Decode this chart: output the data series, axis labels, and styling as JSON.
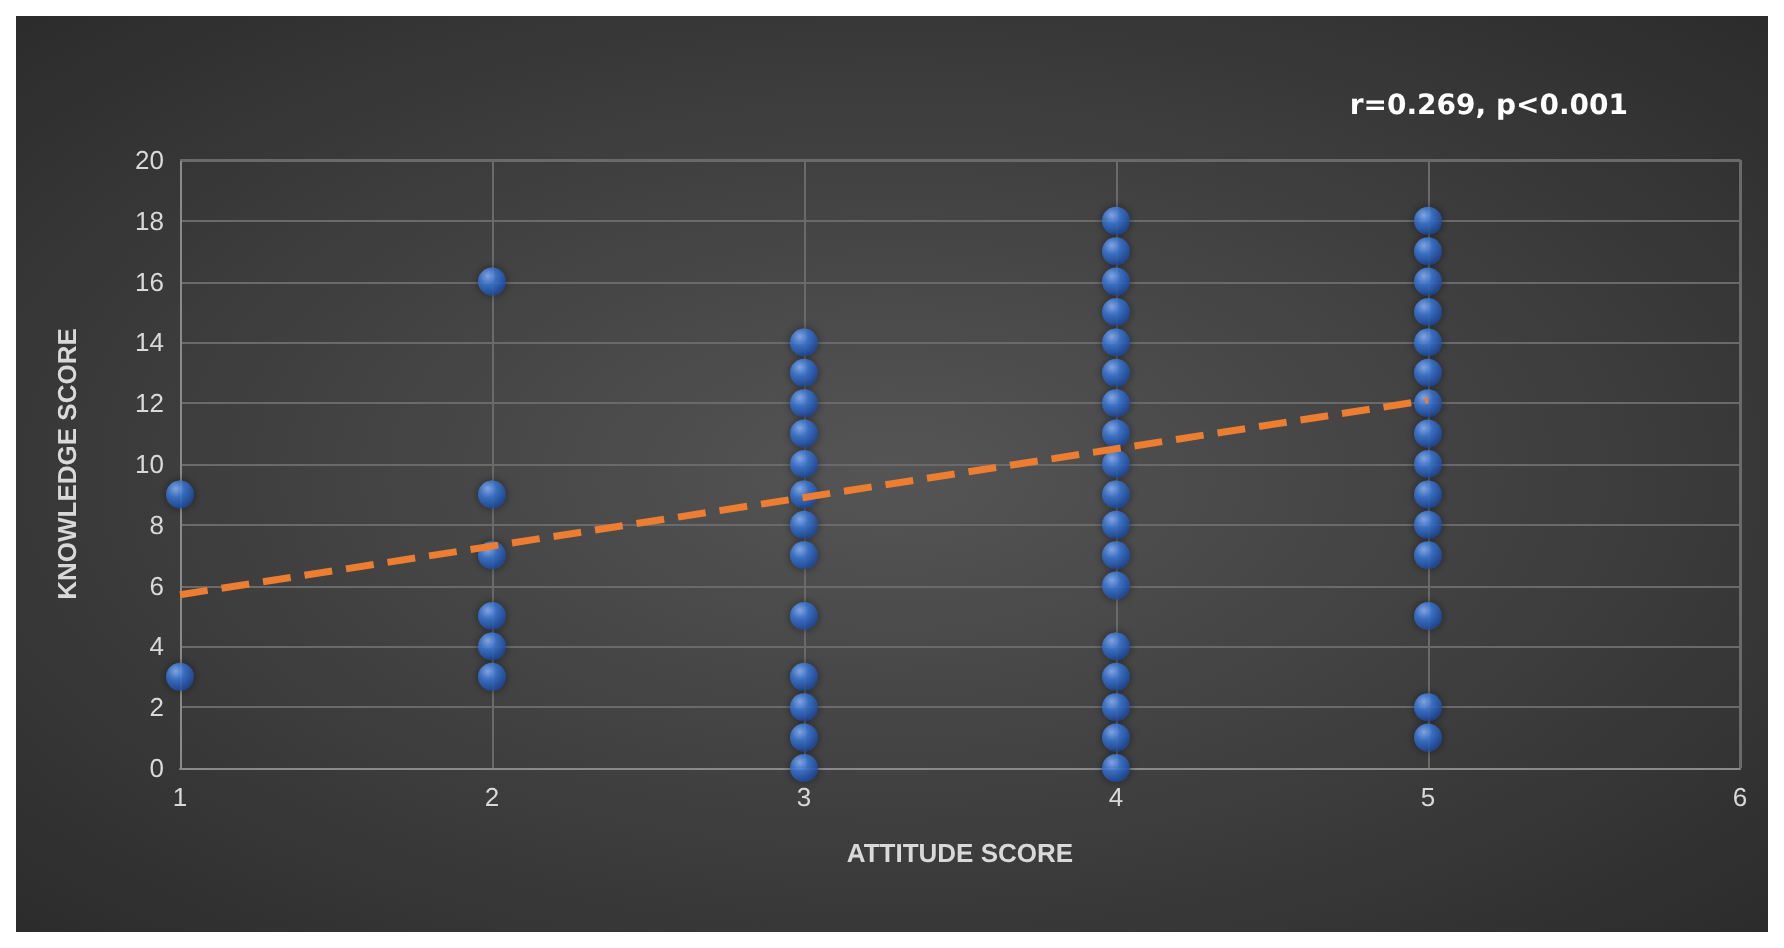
{
  "chart_data": {
    "type": "scatter",
    "xlabel": "ATTITUDE SCORE",
    "ylabel": "KNOWLEDGE SCORE",
    "annotations": [
      "r=0.269, p<0.001"
    ],
    "xlim": [
      1,
      6
    ],
    "xticks": [
      1,
      2,
      3,
      4,
      5,
      6
    ],
    "ylim": [
      0,
      20
    ],
    "yticks": [
      0,
      2,
      4,
      6,
      8,
      10,
      12,
      14,
      16,
      18,
      20
    ],
    "grid": true,
    "marker": "circle",
    "series": [
      {
        "color": "#3a78d8",
        "x": [
          1,
          1,
          2,
          2,
          2,
          2,
          2,
          2,
          3,
          3,
          3,
          3,
          3,
          3,
          3,
          3,
          3,
          3,
          3,
          3,
          3,
          4,
          4,
          4,
          4,
          4,
          4,
          4,
          4,
          4,
          4,
          4,
          4,
          4,
          4,
          4,
          4,
          4,
          4,
          5,
          5,
          5,
          5,
          5,
          5,
          5,
          5,
          5,
          5,
          5,
          5,
          5,
          5,
          5
        ],
        "values": [
          9,
          3,
          16,
          9,
          7,
          5,
          4,
          3,
          14,
          13,
          12,
          11,
          10,
          9,
          8,
          7,
          5,
          3,
          2,
          1,
          0,
          18,
          17,
          16,
          15,
          14,
          13,
          12,
          11,
          10,
          9,
          8,
          7,
          6,
          4,
          3,
          2,
          1,
          0,
          18,
          17,
          16,
          15,
          14,
          13,
          12,
          11,
          10,
          9,
          8,
          7,
          5,
          2,
          1
        ]
      },
      {
        "type": "line",
        "color": "#ed7d31",
        "x": [
          1,
          5
        ],
        "values": [
          5.7,
          12.1
        ],
        "line_style": "dashed",
        "marker": "none"
      }
    ]
  }
}
